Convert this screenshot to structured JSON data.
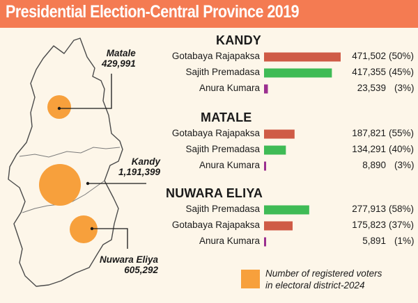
{
  "title": "Presidential Election-Central Province 2019",
  "colors": {
    "background": "#fdf6e9",
    "title_bar": "#f47b52",
    "gotabaya": "#cf5b46",
    "sajith": "#3fbb55",
    "anura": "#9b2f8f",
    "voters_circle": "#f7a03c"
  },
  "map": {
    "districts": [
      {
        "name": "Matale",
        "voters": "429,991",
        "voters_value": 429991
      },
      {
        "name": "Kandy",
        "voters": "1,191,399",
        "voters_value": 1191399
      },
      {
        "name": "Nuwara Eliya",
        "voters": "605,292",
        "voters_value": 605292
      }
    ]
  },
  "legend": {
    "line1": "Number of registered voters",
    "line2": "in electoral district-2024",
    "icon": "orange-square"
  },
  "chart_data": {
    "type": "bar",
    "orientation": "horizontal",
    "title": "Presidential Election-Central Province 2019",
    "groups": [
      {
        "district": "KANDY",
        "rows": [
          {
            "candidate": "Gotabaya Rajapaksa",
            "votes": 471502,
            "votes_label": "471,502",
            "percent_label": "(50%)",
            "color": "#cf5b46"
          },
          {
            "candidate": "Sajith Premadasa",
            "votes": 417355,
            "votes_label": "417,355",
            "percent_label": "(45%)",
            "color": "#3fbb55"
          },
          {
            "candidate": "Anura Kumara",
            "votes": 23539,
            "votes_label": "23,539",
            "percent_label": "(3%)",
            "color": "#9b2f8f"
          }
        ]
      },
      {
        "district": "MATALE",
        "rows": [
          {
            "candidate": "Gotabaya Rajapaksa",
            "votes": 187821,
            "votes_label": "187,821",
            "percent_label": "(55%)",
            "color": "#cf5b46"
          },
          {
            "candidate": "Sajith Premadasa",
            "votes": 134291,
            "votes_label": "134,291",
            "percent_label": "(40%)",
            "color": "#3fbb55"
          },
          {
            "candidate": "Anura Kumara",
            "votes": 8890,
            "votes_label": "8,890",
            "percent_label": "(3%)",
            "color": "#9b2f8f"
          }
        ]
      },
      {
        "district": "NUWARA ELIYA",
        "rows": [
          {
            "candidate": "Sajith Premadasa",
            "votes": 277913,
            "votes_label": "277,913",
            "percent_label": "(58%)",
            "color": "#3fbb55"
          },
          {
            "candidate": "Gotabaya Rajapaksa",
            "votes": 175823,
            "votes_label": "175,823",
            "percent_label": "(37%)",
            "color": "#cf5b46"
          },
          {
            "candidate": "Anura Kumara",
            "votes": 5891,
            "votes_label": "5,891",
            "percent_label": "(1%)",
            "color": "#9b2f8f"
          }
        ]
      }
    ]
  }
}
